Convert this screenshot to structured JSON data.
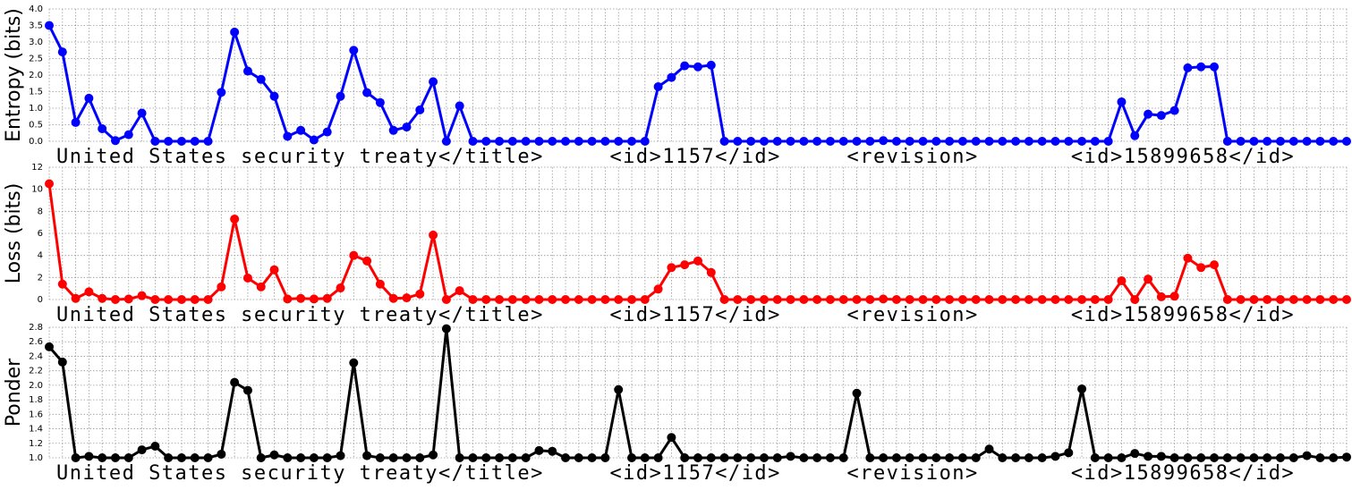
{
  "chart_data": [
    {
      "type": "line",
      "ylabel": "Entropy (bits)",
      "xlabel": "United States security treaty</title>     <id>1157</id>     <revision>       <id>15899658</id>",
      "color": "#0000ff",
      "grid": true,
      "xlim": [
        0,
        98
      ],
      "ylim": [
        0,
        4
      ],
      "yticks": [
        {
          "value": 0,
          "label": "0.0"
        },
        0.5,
        {
          "value": 1,
          "label": "1.0"
        },
        1.5,
        {
          "value": 2,
          "label": "2.0"
        },
        2.5,
        {
          "value": 3,
          "label": "3.0"
        },
        3.5,
        {
          "value": 4,
          "label": "4.0"
        }
      ],
      "x": [
        0,
        1,
        2,
        3,
        4,
        5,
        6,
        7,
        8,
        9,
        10,
        11,
        12,
        13,
        14,
        15,
        16,
        17,
        18,
        19,
        20,
        21,
        22,
        23,
        24,
        25,
        26,
        27,
        28,
        29,
        30,
        31,
        32,
        33,
        34,
        35,
        36,
        37,
        38,
        39,
        40,
        41,
        42,
        43,
        44,
        45,
        46,
        47,
        48,
        49,
        50,
        51,
        52,
        53,
        54,
        55,
        56,
        57,
        58,
        59,
        60,
        61,
        62,
        63,
        64,
        65,
        66,
        67,
        68,
        69,
        70,
        71,
        72,
        73,
        74,
        75,
        76,
        77,
        78,
        79,
        80,
        81,
        82,
        83,
        84,
        85,
        86,
        87,
        88,
        89,
        90,
        91,
        92,
        93,
        94,
        95,
        96,
        97,
        98
      ],
      "values": [
        3.5,
        2.7,
        0.57,
        1.3,
        0.38,
        0.02,
        0.2,
        0.85,
        0,
        0,
        0,
        0,
        0,
        1.48,
        3.3,
        2.12,
        1.87,
        1.36,
        0.15,
        0.33,
        0.04,
        0.28,
        1.36,
        2.75,
        1.47,
        1.17,
        0.33,
        0.43,
        0.95,
        1.8,
        0,
        1.07,
        0,
        0,
        0,
        0,
        0,
        0,
        0,
        0,
        0,
        0,
        0,
        0,
        0,
        0,
        1.65,
        1.93,
        2.28,
        2.25,
        2.3,
        0,
        0,
        0,
        0,
        0,
        0,
        0,
        0,
        0,
        0,
        0,
        0,
        0.02,
        0,
        0,
        0,
        0,
        0,
        0,
        0,
        0,
        0,
        0,
        0,
        0,
        0,
        0,
        0,
        0,
        0,
        1.19,
        0.17,
        0.82,
        0.78,
        0.93,
        2.22,
        2.25,
        2.25,
        0,
        0,
        0,
        0,
        0,
        0,
        0,
        0,
        0,
        0
      ]
    },
    {
      "type": "line",
      "ylabel": "Loss (bits)",
      "xlabel": "United States security treaty</title>     <id>1157</id>     <revision>       <id>15899658</id>",
      "color": "#ff0000",
      "grid": true,
      "xlim": [
        0,
        98
      ],
      "ylim": [
        0,
        12
      ],
      "yticks": [
        0,
        2,
        4,
        6,
        8,
        10,
        12
      ],
      "x": [
        0,
        1,
        2,
        3,
        4,
        5,
        6,
        7,
        8,
        9,
        10,
        11,
        12,
        13,
        14,
        15,
        16,
        17,
        18,
        19,
        20,
        21,
        22,
        23,
        24,
        25,
        26,
        27,
        28,
        29,
        30,
        31,
        32,
        33,
        34,
        35,
        36,
        37,
        38,
        39,
        40,
        41,
        42,
        43,
        44,
        45,
        46,
        47,
        48,
        49,
        50,
        51,
        52,
        53,
        54,
        55,
        56,
        57,
        58,
        59,
        60,
        61,
        62,
        63,
        64,
        65,
        66,
        67,
        68,
        69,
        70,
        71,
        72,
        73,
        74,
        75,
        76,
        77,
        78,
        79,
        80,
        81,
        82,
        83,
        84,
        85,
        86,
        87,
        88,
        89,
        90,
        91,
        92,
        93,
        94,
        95,
        96,
        97,
        98
      ],
      "values": [
        10.5,
        1.4,
        0.1,
        0.7,
        0.1,
        0,
        0.05,
        0.35,
        0,
        0,
        0,
        0,
        0,
        1.15,
        7.3,
        1.95,
        1.15,
        2.7,
        0.05,
        0.1,
        0.05,
        0.1,
        1.05,
        4.0,
        3.5,
        1.4,
        0.1,
        0.15,
        0.5,
        5.85,
        0,
        0.8,
        0,
        0,
        0,
        0,
        0,
        0,
        0,
        0,
        0,
        0,
        0,
        0,
        0,
        0,
        0.95,
        2.9,
        3.15,
        3.5,
        2.45,
        0,
        0,
        0,
        0,
        0,
        0,
        0,
        0,
        0,
        0,
        0,
        0,
        0.05,
        0,
        0,
        0,
        0,
        0,
        0,
        0,
        0,
        0,
        0,
        0,
        0,
        0,
        0,
        0,
        0,
        0,
        1.7,
        0,
        1.85,
        0.25,
        0.3,
        3.75,
        2.9,
        3.15,
        0,
        0,
        0,
        0,
        0,
        0,
        0,
        0,
        0,
        0
      ]
    },
    {
      "type": "line",
      "ylabel": "Ponder",
      "xlabel": "United States security treaty</title>     <id>1157</id>     <revision>       <id>15899658</id>",
      "color": "#000000",
      "grid": true,
      "xlim": [
        0,
        98
      ],
      "ylim": [
        1,
        2.8
      ],
      "yticks": [
        {
          "value": 1,
          "label": "1.0"
        },
        1.2,
        1.4,
        1.6,
        1.8,
        {
          "value": 2,
          "label": "2.0"
        },
        2.2,
        2.4,
        2.6,
        2.8
      ],
      "x": [
        0,
        1,
        2,
        3,
        4,
        5,
        6,
        7,
        8,
        9,
        10,
        11,
        12,
        13,
        14,
        15,
        16,
        17,
        18,
        19,
        20,
        21,
        22,
        23,
        24,
        25,
        26,
        27,
        28,
        29,
        30,
        31,
        32,
        33,
        34,
        35,
        36,
        37,
        38,
        39,
        40,
        41,
        42,
        43,
        44,
        45,
        46,
        47,
        48,
        49,
        50,
        51,
        52,
        53,
        54,
        55,
        56,
        57,
        58,
        59,
        60,
        61,
        62,
        63,
        64,
        65,
        66,
        67,
        68,
        69,
        70,
        71,
        72,
        73,
        74,
        75,
        76,
        77,
        78,
        79,
        80,
        81,
        82,
        83,
        84,
        85,
        86,
        87,
        88,
        89,
        90,
        91,
        92,
        93,
        94,
        95,
        96,
        97,
        98
      ],
      "values": [
        2.53,
        2.32,
        1,
        1.02,
        1,
        1,
        1,
        1.11,
        1.16,
        1,
        1,
        1,
        1,
        1.05,
        2.04,
        1.93,
        1,
        1.04,
        1,
        1,
        1,
        1,
        1.03,
        2.31,
        1.03,
        1,
        1,
        1,
        1,
        1.04,
        2.78,
        1,
        1,
        1,
        1,
        1,
        1,
        1.1,
        1.09,
        1,
        1,
        1,
        1,
        1.94,
        1,
        1,
        1,
        1.28,
        1,
        1,
        1,
        1,
        1,
        1,
        1,
        1,
        1.02,
        1,
        1,
        1,
        1,
        1.89,
        1,
        1,
        1,
        1,
        1,
        1,
        1,
        1,
        1,
        1.12,
        1,
        1,
        1,
        1,
        1.02,
        1.07,
        1.95,
        1,
        1,
        1,
        1.06,
        1.02,
        1.02,
        1,
        1,
        1,
        1,
        1,
        1,
        1,
        1,
        1,
        1,
        1.03,
        1,
        1,
        1.01
      ]
    }
  ]
}
